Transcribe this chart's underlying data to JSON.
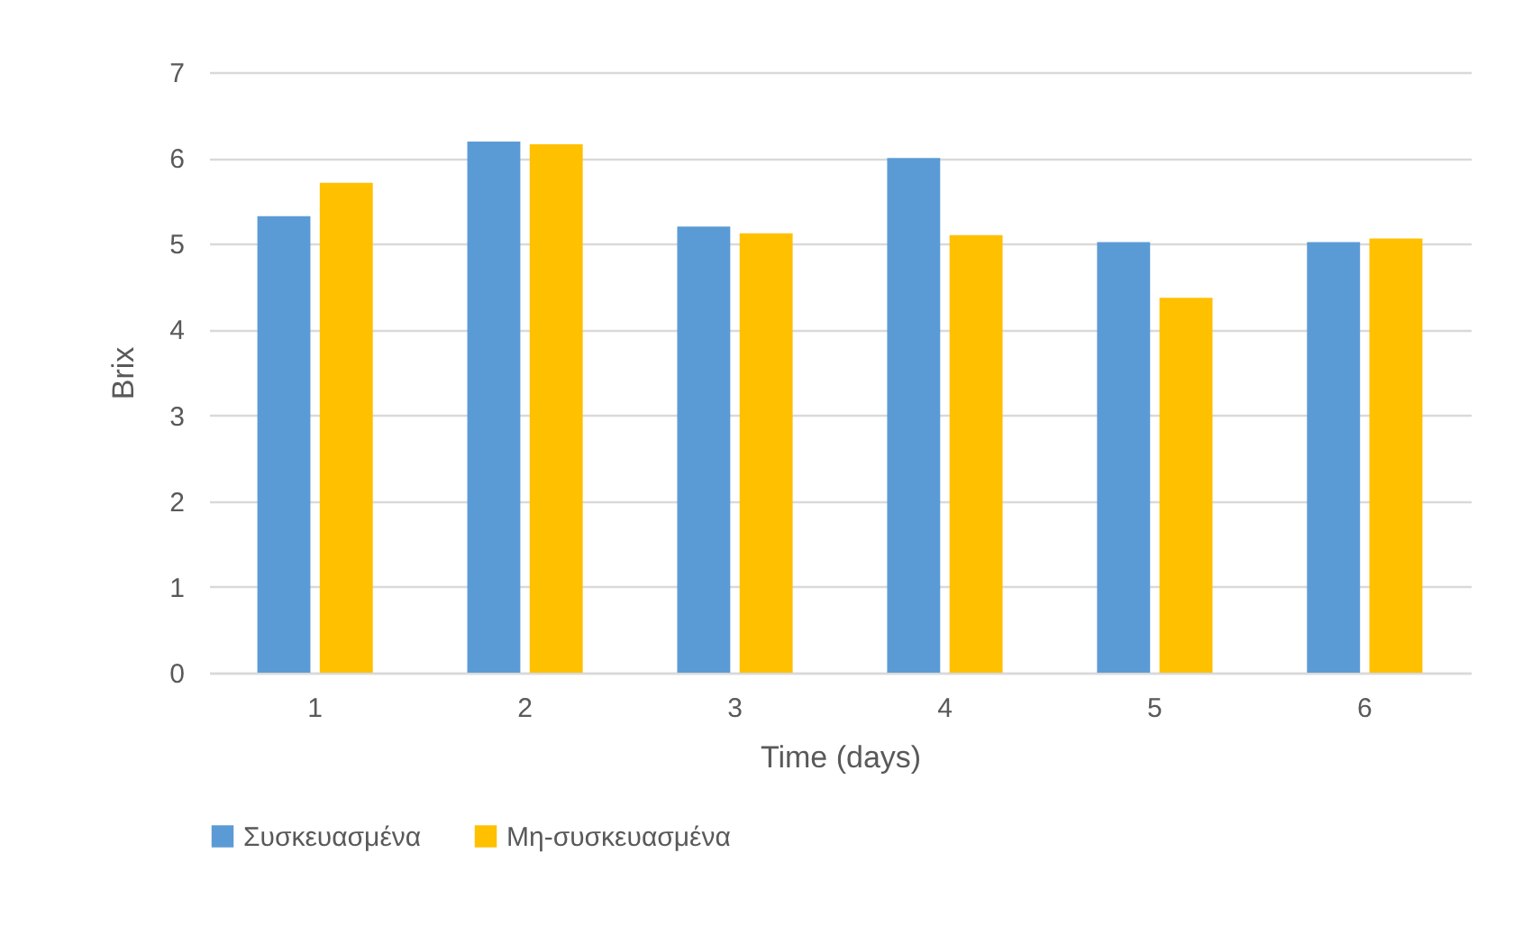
{
  "chart_data": {
    "type": "bar",
    "xlabel": "Time (days)",
    "ylabel": "Brix",
    "categories": [
      "1",
      "2",
      "3",
      "4",
      "5",
      "6"
    ],
    "series": [
      {
        "name": "Συσκευασμένα",
        "color": "#5b9bd5",
        "values": [
          5.32,
          6.19,
          5.2,
          6.0,
          5.02,
          5.02
        ]
      },
      {
        "name": "Μη-συσκευασμένα",
        "color": "#ffc000",
        "values": [
          5.71,
          6.16,
          5.12,
          5.1,
          4.37,
          5.06
        ]
      }
    ],
    "ylim": [
      0,
      7
    ],
    "yticks": [
      0,
      1,
      2,
      3,
      4,
      5,
      6,
      7
    ],
    "grid": "y",
    "legend": "bottom"
  }
}
